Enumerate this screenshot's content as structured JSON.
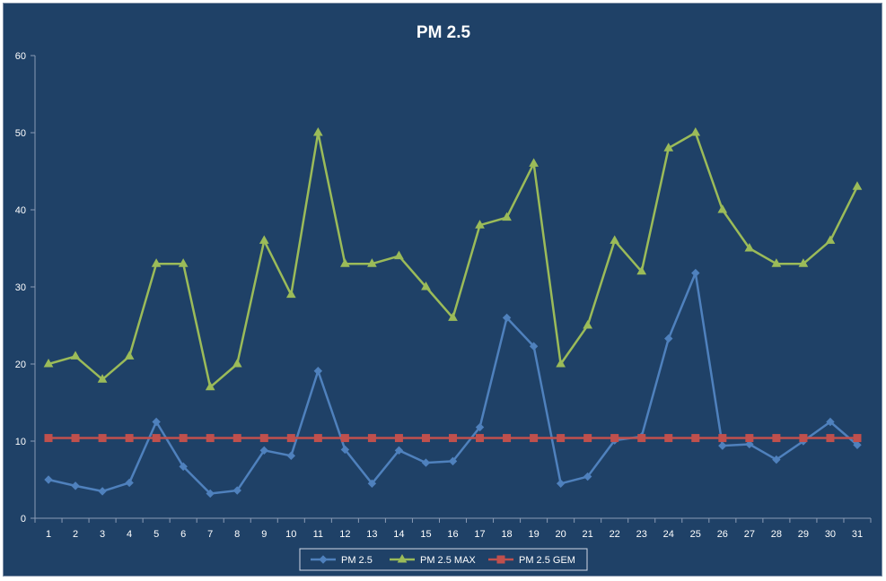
{
  "chart_data": {
    "type": "line",
    "title": "PM 2.5",
    "xlabel": "",
    "ylabel": "",
    "ylim": [
      0,
      60
    ],
    "yticks": [
      0,
      10,
      20,
      30,
      40,
      50,
      60
    ],
    "grid": false,
    "legend_position": "bottom",
    "background": "#1f4167",
    "categories": [
      "1",
      "2",
      "3",
      "4",
      "5",
      "6",
      "7",
      "8",
      "9",
      "10",
      "11",
      "12",
      "13",
      "14",
      "15",
      "16",
      "17",
      "18",
      "19",
      "20",
      "21",
      "22",
      "23",
      "24",
      "25",
      "26",
      "27",
      "28",
      "29",
      "30",
      "31"
    ],
    "series": [
      {
        "name": "PM 2.5",
        "color": "#4f81bd",
        "marker": "diamond",
        "values": [
          5,
          4.2,
          3.5,
          4.6,
          12.5,
          6.7,
          3.2,
          3.6,
          8.8,
          8.1,
          19.1,
          8.9,
          4.5,
          8.8,
          7.2,
          7.4,
          11.8,
          26,
          22.3,
          4.5,
          5.4,
          10.1,
          10.6,
          23.3,
          31.8,
          9.4,
          9.6,
          7.6,
          10,
          12.5,
          9.5
        ]
      },
      {
        "name": "PM 2.5 MAX",
        "color": "#9bbb59",
        "marker": "triangle",
        "values": [
          20,
          21,
          18,
          21,
          33,
          33,
          17,
          20,
          36,
          29,
          50,
          33,
          33,
          34,
          30,
          26,
          38,
          39,
          46,
          20,
          25,
          36,
          32,
          48,
          50,
          40,
          35,
          33,
          33,
          36,
          43
        ]
      },
      {
        "name": "PM 2.5 GEM",
        "color": "#c0504d",
        "marker": "square",
        "values": [
          10.4,
          10.4,
          10.4,
          10.4,
          10.4,
          10.4,
          10.4,
          10.4,
          10.4,
          10.4,
          10.4,
          10.4,
          10.4,
          10.4,
          10.4,
          10.4,
          10.4,
          10.4,
          10.4,
          10.4,
          10.4,
          10.4,
          10.4,
          10.4,
          10.4,
          10.4,
          10.4,
          10.4,
          10.4,
          10.4,
          10.4
        ]
      }
    ]
  }
}
